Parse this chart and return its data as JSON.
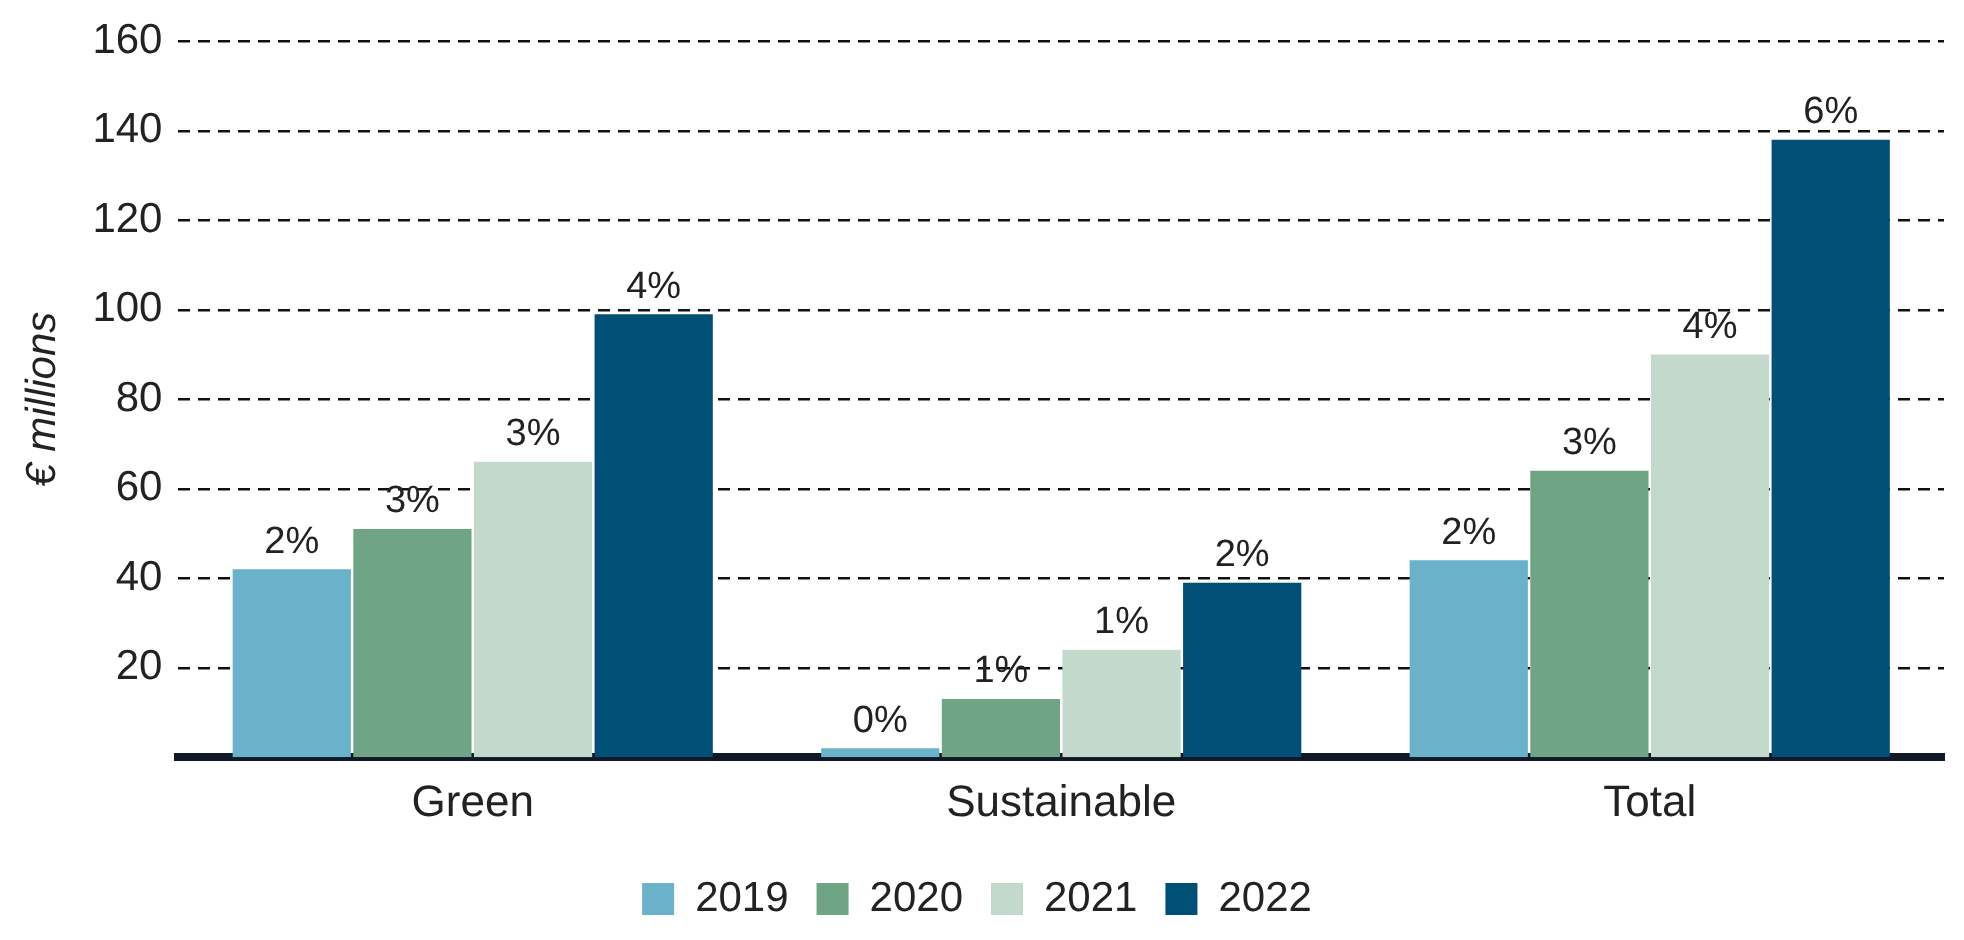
{
  "chart_data": {
    "type": "bar",
    "ylabel": "€ millions",
    "categories": [
      "Green",
      "Sustainable",
      "Total"
    ],
    "series": [
      {
        "name": "2019",
        "color": "#6ab2c9",
        "values": [
          42,
          2,
          44
        ]
      },
      {
        "name": "2020",
        "color": "#6fa584",
        "values": [
          51,
          13,
          64
        ]
      },
      {
        "name": "2021",
        "color": "#c2d9cc",
        "values": [
          66,
          24,
          90
        ]
      },
      {
        "name": "2022",
        "color": "#004f75",
        "values": [
          99,
          39,
          138
        ]
      }
    ],
    "annotations": [
      "2%",
      "3%",
      "3%",
      "4%",
      "0%",
      "1%",
      "1%",
      "2%",
      "2%",
      "3%",
      "4%",
      "6%"
    ],
    "ylim": [
      0,
      160
    ],
    "yticks": [
      20,
      40,
      60,
      80,
      100,
      120,
      140,
      160
    ],
    "grid": "y",
    "legend": "bottom"
  }
}
